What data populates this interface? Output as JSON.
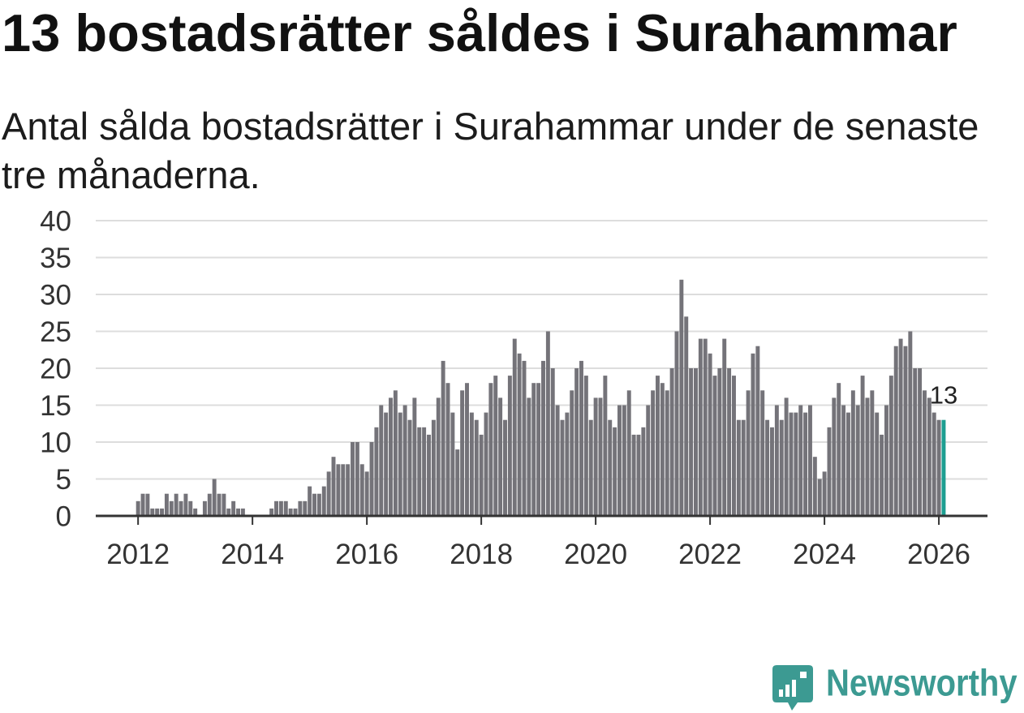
{
  "chart_data": {
    "type": "bar",
    "title": "13 bostadsrätter såldes i Surahammar",
    "subtitle": "Antal sålda bostadsrätter i Surahammar under de senaste tre månaderna.",
    "first_bar_year": 2012,
    "first_bar_month": 1,
    "values": [
      2,
      3,
      3,
      1,
      1,
      1,
      3,
      2,
      3,
      2,
      3,
      2,
      1,
      0,
      2,
      3,
      5,
      3,
      3,
      1,
      2,
      1,
      1,
      0,
      0,
      0,
      0,
      0,
      1,
      2,
      2,
      2,
      1,
      1,
      2,
      2,
      4,
      3,
      3,
      4,
      6,
      8,
      7,
      7,
      7,
      10,
      10,
      7,
      6,
      10,
      12,
      15,
      14,
      16,
      17,
      14,
      15,
      13,
      16,
      12,
      12,
      11,
      13,
      16,
      21,
      18,
      14,
      9,
      17,
      18,
      14,
      13,
      11,
      14,
      18,
      19,
      16,
      13,
      19,
      24,
      22,
      21,
      16,
      18,
      18,
      21,
      25,
      20,
      15,
      13,
      14,
      17,
      20,
      21,
      19,
      13,
      16,
      16,
      19,
      13,
      12,
      15,
      15,
      17,
      11,
      11,
      12,
      15,
      17,
      19,
      18,
      17,
      20,
      25,
      32,
      27,
      20,
      20,
      24,
      24,
      22,
      19,
      20,
      24,
      20,
      19,
      13,
      13,
      17,
      22,
      23,
      17,
      13,
      12,
      15,
      13,
      16,
      14,
      14,
      15,
      14,
      15,
      8,
      5,
      6,
      12,
      16,
      18,
      15,
      14,
      17,
      15,
      19,
      16,
      17,
      14,
      11,
      15,
      19,
      23,
      24,
      23,
      25,
      20,
      20,
      17,
      16,
      14,
      13,
      13
    ],
    "xlim": [
      2011.26,
      2026.85
    ],
    "ylim": [
      0,
      40
    ],
    "x_ticks": [
      2012,
      2014,
      2016,
      2018,
      2020,
      2022,
      2024,
      2026
    ],
    "y_ticks": [
      0,
      5,
      10,
      15,
      20,
      25,
      30,
      35,
      40
    ],
    "grid": true,
    "highlight": {
      "index": 169,
      "label": "13"
    },
    "colors": {
      "bar": "#747379",
      "highlight_bar": "#1d9e91",
      "grid": "#dddddd",
      "axis": "#333333"
    }
  },
  "logo": {
    "text": "Newsworthy",
    "color": "#3c9a92",
    "icon": "bar-chart-bubble-icon"
  }
}
